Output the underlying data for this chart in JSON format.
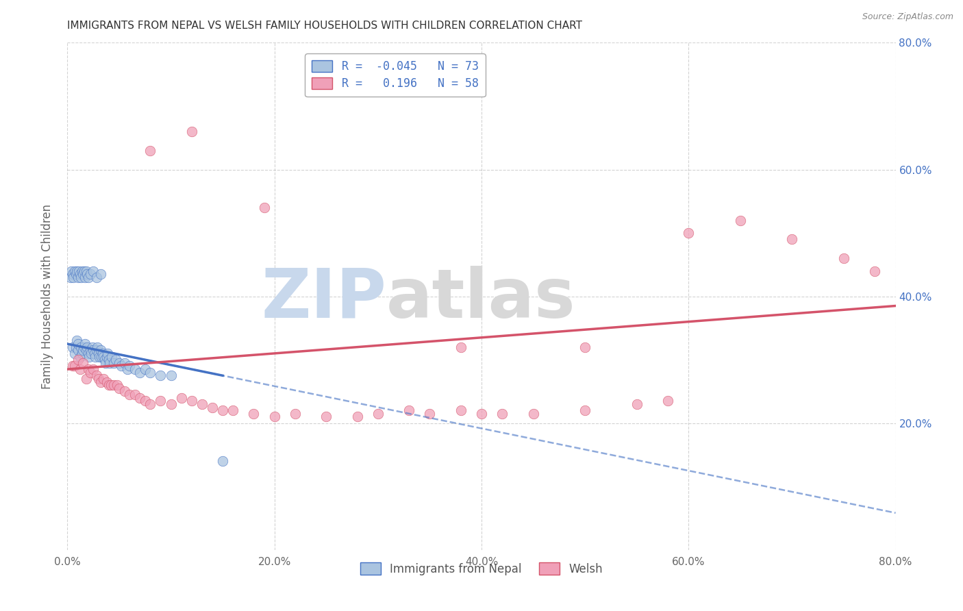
{
  "title": "IMMIGRANTS FROM NEPAL VS WELSH FAMILY HOUSEHOLDS WITH CHILDREN CORRELATION CHART",
  "source": "Source: ZipAtlas.com",
  "ylabel": "Family Households with Children",
  "legend_label_1": "Immigrants from Nepal",
  "legend_label_2": "Welsh",
  "R1": -0.045,
  "N1": 73,
  "R2": 0.196,
  "N2": 58,
  "color1": "#aac4e0",
  "color2": "#f0a0b8",
  "line_color1": "#4472c4",
  "line_color2": "#d4536a",
  "xlim": [
    0.0,
    0.8
  ],
  "ylim": [
    0.0,
    0.8
  ],
  "x_ticks": [
    0.0,
    0.2,
    0.4,
    0.6,
    0.8
  ],
  "y_ticks": [
    0.2,
    0.4,
    0.6,
    0.8
  ],
  "x_tick_labels": [
    "0.0%",
    "20.0%",
    "40.0%",
    "60.0%",
    "80.0%"
  ],
  "y_tick_labels_right": [
    "20.0%",
    "40.0%",
    "60.0%",
    "80.0%"
  ],
  "background_color": "#ffffff",
  "grid_color": "#c8c8c8",
  "watermark_zip_color": "#c8d8ec",
  "watermark_atlas_color": "#d8d8d8",
  "nepal_x": [
    0.005,
    0.007,
    0.008,
    0.009,
    0.01,
    0.01,
    0.012,
    0.013,
    0.014,
    0.015,
    0.016,
    0.017,
    0.018,
    0.019,
    0.02,
    0.021,
    0.022,
    0.023,
    0.024,
    0.025,
    0.026,
    0.027,
    0.028,
    0.029,
    0.03,
    0.031,
    0.032,
    0.033,
    0.034,
    0.035,
    0.036,
    0.037,
    0.038,
    0.039,
    0.04,
    0.041,
    0.043,
    0.045,
    0.047,
    0.05,
    0.052,
    0.055,
    0.058,
    0.06,
    0.065,
    0.07,
    0.075,
    0.08,
    0.09,
    0.1,
    0.003,
    0.004,
    0.005,
    0.006,
    0.007,
    0.008,
    0.009,
    0.01,
    0.011,
    0.012,
    0.013,
    0.014,
    0.015,
    0.016,
    0.017,
    0.018,
    0.019,
    0.02,
    0.022,
    0.025,
    0.028,
    0.032,
    0.15
  ],
  "nepal_y": [
    0.32,
    0.31,
    0.32,
    0.33,
    0.315,
    0.325,
    0.305,
    0.32,
    0.31,
    0.315,
    0.32,
    0.325,
    0.315,
    0.32,
    0.31,
    0.305,
    0.315,
    0.31,
    0.32,
    0.315,
    0.31,
    0.305,
    0.315,
    0.32,
    0.31,
    0.305,
    0.315,
    0.305,
    0.31,
    0.305,
    0.3,
    0.295,
    0.305,
    0.31,
    0.3,
    0.295,
    0.305,
    0.295,
    0.3,
    0.295,
    0.29,
    0.295,
    0.285,
    0.29,
    0.285,
    0.28,
    0.285,
    0.28,
    0.275,
    0.275,
    0.43,
    0.44,
    0.435,
    0.43,
    0.44,
    0.435,
    0.44,
    0.43,
    0.44,
    0.435,
    0.43,
    0.44,
    0.435,
    0.44,
    0.43,
    0.44,
    0.435,
    0.43,
    0.435,
    0.44,
    0.43,
    0.435,
    0.14
  ],
  "welsh_x": [
    0.005,
    0.007,
    0.01,
    0.012,
    0.015,
    0.018,
    0.02,
    0.022,
    0.025,
    0.028,
    0.03,
    0.032,
    0.035,
    0.038,
    0.04,
    0.042,
    0.045,
    0.048,
    0.05,
    0.055,
    0.06,
    0.065,
    0.07,
    0.075,
    0.08,
    0.09,
    0.1,
    0.11,
    0.12,
    0.13,
    0.14,
    0.15,
    0.16,
    0.18,
    0.2,
    0.22,
    0.25,
    0.28,
    0.3,
    0.33,
    0.35,
    0.38,
    0.4,
    0.42,
    0.45,
    0.5,
    0.55,
    0.58,
    0.6,
    0.65,
    0.7,
    0.75,
    0.78,
    0.19,
    0.08,
    0.12,
    0.38,
    0.5
  ],
  "welsh_y": [
    0.29,
    0.29,
    0.3,
    0.285,
    0.295,
    0.27,
    0.285,
    0.28,
    0.285,
    0.275,
    0.27,
    0.265,
    0.27,
    0.265,
    0.26,
    0.26,
    0.26,
    0.26,
    0.255,
    0.25,
    0.245,
    0.245,
    0.24,
    0.235,
    0.23,
    0.235,
    0.23,
    0.24,
    0.235,
    0.23,
    0.225,
    0.22,
    0.22,
    0.215,
    0.21,
    0.215,
    0.21,
    0.21,
    0.215,
    0.22,
    0.215,
    0.22,
    0.215,
    0.215,
    0.215,
    0.22,
    0.23,
    0.235,
    0.5,
    0.52,
    0.49,
    0.46,
    0.44,
    0.54,
    0.63,
    0.66,
    0.32,
    0.32
  ],
  "trend1_x": [
    0.0,
    0.15
  ],
  "trend1_y": [
    0.325,
    0.275
  ],
  "trend2_x": [
    0.0,
    0.8
  ],
  "trend2_y": [
    0.285,
    0.385
  ]
}
